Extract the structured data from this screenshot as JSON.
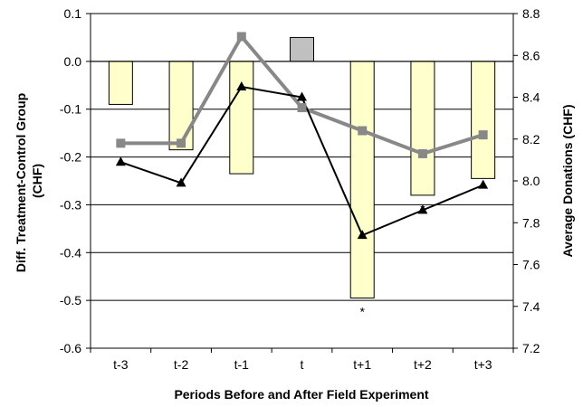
{
  "chart_data": {
    "type": "bar",
    "categories": [
      "t-3",
      "t-2",
      "t-1",
      "t",
      "t+1",
      "t+2",
      "t+3"
    ],
    "xlabel": "Periods Before and After Field Experiment",
    "ylabel": "Diff. Treatment-Control Group (CHF)",
    "y2label": "Average Donations (CHF)",
    "ylim": [
      -0.6,
      0.1
    ],
    "y2lim": [
      7.2,
      8.8
    ],
    "yticks": [
      "0.1",
      "0.0",
      "-0.1",
      "-0.2",
      "-0.3",
      "-0.4",
      "-0.5",
      "-0.6"
    ],
    "y2ticks": [
      "8.8",
      "8.6",
      "8.4",
      "8.2",
      "8.0",
      "7.8",
      "7.6",
      "7.4",
      "7.2"
    ],
    "grid": true,
    "series": [
      {
        "type": "bar",
        "axis": "left",
        "values": [
          -0.09,
          -0.185,
          -0.235,
          0.05,
          -0.495,
          -0.28,
          -0.245
        ],
        "color": "#ffffcc",
        "highlight_index": 3,
        "highlight_color": "#c0c0c0"
      },
      {
        "type": "line",
        "axis": "right",
        "marker": "square",
        "values": [
          8.18,
          8.18,
          8.69,
          8.35,
          8.24,
          8.13,
          8.22
        ],
        "color": "#888888"
      },
      {
        "type": "line",
        "axis": "right",
        "marker": "triangle",
        "values": [
          8.09,
          7.99,
          8.45,
          8.4,
          7.74,
          7.86,
          7.98
        ],
        "color": "#000000"
      }
    ],
    "annotations": [
      {
        "category": "t+1",
        "text": "*"
      },
      {
        "category": "t+2",
        "text": "*"
      }
    ]
  }
}
